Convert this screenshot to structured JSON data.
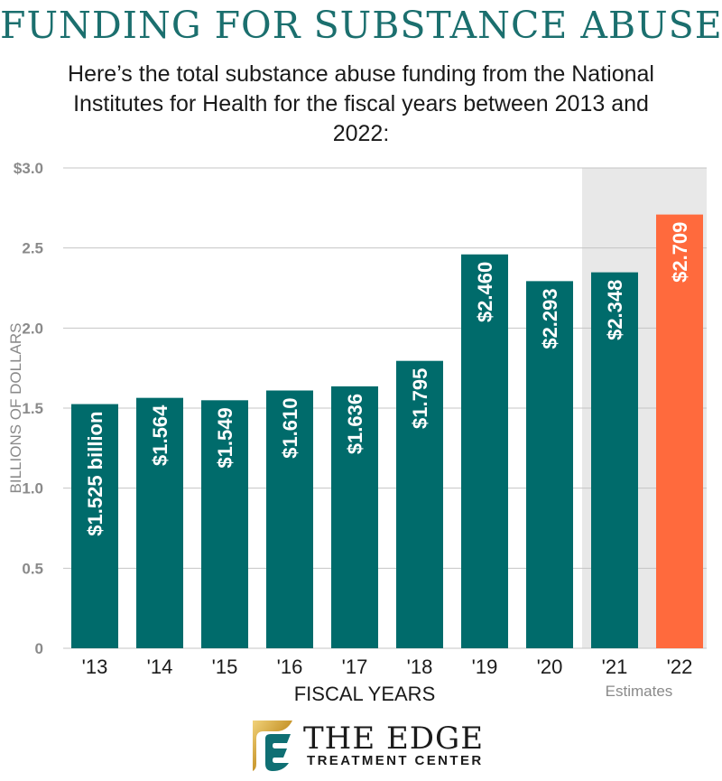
{
  "header": {
    "title": "FUNDING FOR SUBSTANCE ABUSE",
    "subtitle": "Here’s the total substance abuse funding from the National Institutes for Health for the fiscal years between 2013 and 2022:"
  },
  "chart_data": {
    "type": "bar",
    "categories": [
      "'13",
      "'14",
      "'15",
      "'16",
      "'17",
      "'18",
      "'19",
      "'20",
      "'21",
      "'22"
    ],
    "values": [
      1.525,
      1.564,
      1.549,
      1.61,
      1.636,
      1.795,
      2.46,
      2.293,
      2.348,
      2.709
    ],
    "data_labels": [
      "$1.525 billion",
      "$1.564",
      "$1.549",
      "$1.610",
      "$1.636",
      "$1.795",
      "$2.460",
      "$2.293",
      "$2.348",
      "$2.709"
    ],
    "ylabel": "BILLIONS OF DOLLARS",
    "xlabel": "FISCAL YEARS",
    "ylim": [
      0,
      3.0
    ],
    "yticks": [
      0,
      0.5,
      1.0,
      1.5,
      2.0,
      2.5,
      3.0
    ],
    "ytick_labels": [
      "0",
      "0.5",
      "1.0",
      "1.5",
      "2.0",
      "2.5",
      "$3.0"
    ],
    "grid": true,
    "estimate_categories": [
      "'21",
      "'22"
    ],
    "estimate_label": "Estimates",
    "colors": {
      "bar": "#006b6b",
      "highlight_bar": "#ff6a3d",
      "estimate_band": "#e8e8e8",
      "grid": "#c4c4c4",
      "axis_text": "#8a8a8a",
      "title": "#1b6f6e"
    },
    "highlight_index": 9
  },
  "logo": {
    "name": "THE EDGE",
    "subtitle": "TREATMENT CENTER"
  }
}
